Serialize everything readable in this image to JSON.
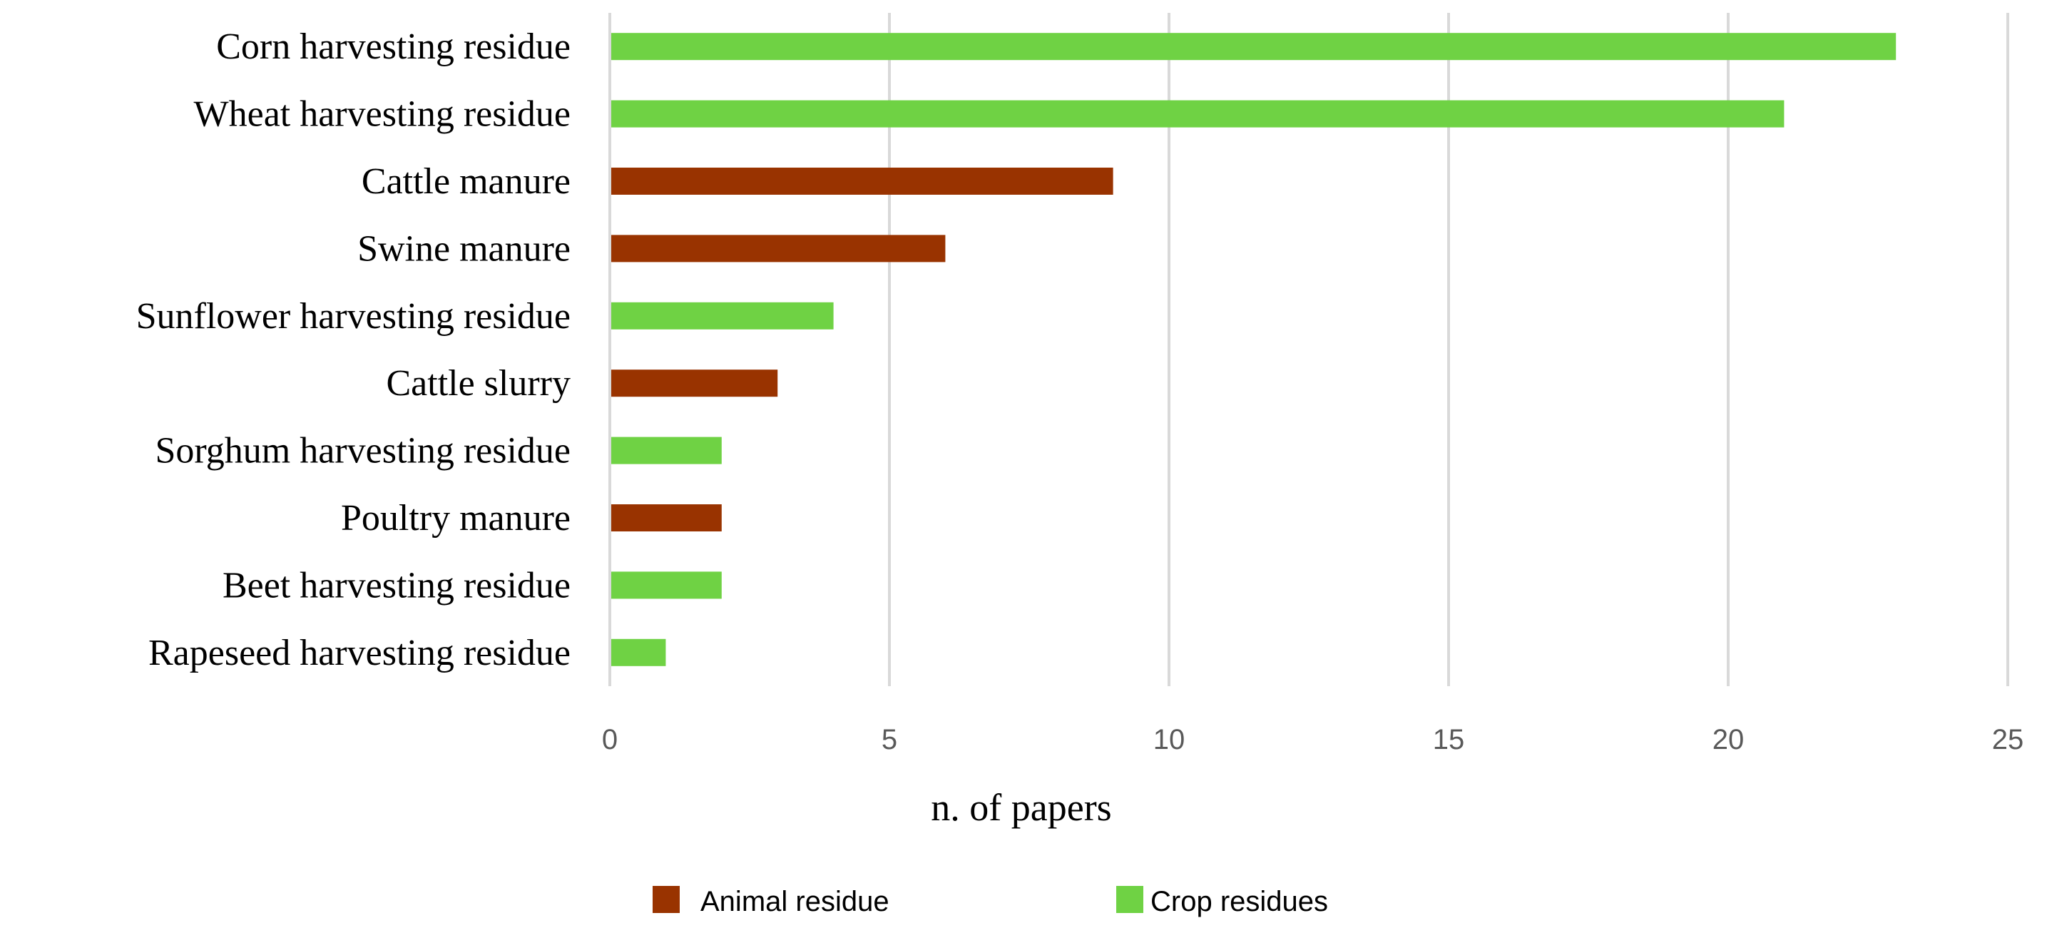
{
  "chart_data": {
    "type": "bar",
    "orientation": "horizontal",
    "categories": [
      "Corn harvesting residue",
      "Wheat harvesting residue",
      "Cattle manure",
      "Swine manure",
      "Sunflower harvesting residue",
      "Cattle slurry",
      "Sorghum harvesting residue",
      "Poultry manure",
      "Beet harvesting residue",
      "Rapeseed harvesting residue"
    ],
    "values": [
      23,
      21,
      9,
      6,
      4,
      3,
      2,
      2,
      2,
      1
    ],
    "groups": [
      "Crop residues",
      "Crop residues",
      "Animal residue",
      "Animal residue",
      "Crop residues",
      "Animal residue",
      "Crop residues",
      "Animal residue",
      "Crop residues",
      "Crop residues"
    ],
    "series": [
      {
        "name": "Animal residue",
        "color": "#993300"
      },
      {
        "name": "Crop residues",
        "color": "#6fd244"
      }
    ],
    "xlabel": "n. of papers",
    "ylabel": "",
    "title": "",
    "xlim": [
      0,
      25
    ],
    "xticks": [
      "0",
      "5",
      "10",
      "15",
      "20",
      "25"
    ],
    "grid": "vertical",
    "legend_position": "bottom"
  }
}
